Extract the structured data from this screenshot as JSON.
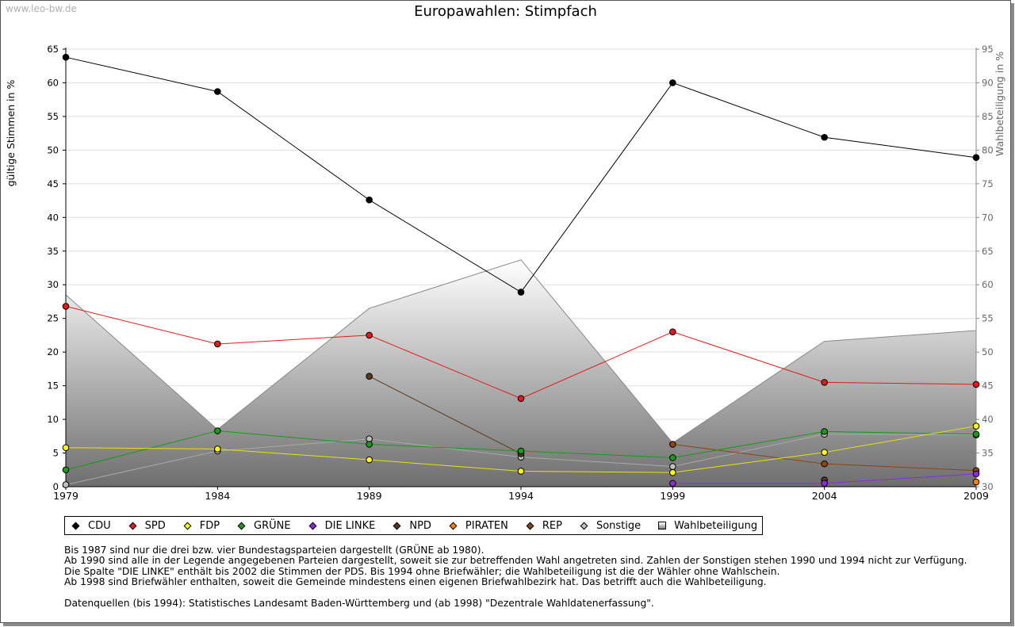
{
  "watermark": "www.leo-bw.de",
  "chart_data": {
    "type": "line",
    "title": "Europawahlen: Stimpfach",
    "ylabel": "gültige Stimmen in %",
    "y2label": "Wahlbeteiligung in %",
    "ylim": [
      0,
      65
    ],
    "y2lim": [
      30,
      95
    ],
    "yticks": [
      0,
      5,
      10,
      15,
      20,
      25,
      30,
      35,
      40,
      45,
      50,
      55,
      60,
      65
    ],
    "y2ticks": [
      30,
      35,
      40,
      45,
      50,
      55,
      60,
      65,
      70,
      75,
      80,
      85,
      90,
      95
    ],
    "x": [
      "1979",
      "1984",
      "1989",
      "1994",
      "1999",
      "2004",
      "2009"
    ],
    "grid": true,
    "legend_position": "bottom",
    "series": [
      {
        "name": "CDU",
        "color": "#000000",
        "values": [
          63.8,
          58.7,
          42.6,
          28.9,
          60.0,
          51.9,
          48.9
        ]
      },
      {
        "name": "SPD",
        "color": "#e41a1c",
        "values": [
          26.8,
          21.2,
          22.5,
          13.1,
          23.0,
          15.5,
          15.2
        ]
      },
      {
        "name": "FDP",
        "color": "#ffff00",
        "values": [
          5.8,
          5.6,
          4.0,
          2.3,
          2.1,
          5.1,
          9.0
        ]
      },
      {
        "name": "GRÜNE",
        "color": "#1a9a1a",
        "values": [
          2.5,
          8.3,
          6.3,
          5.3,
          4.3,
          8.2,
          7.8
        ]
      },
      {
        "name": "DIE LINKE",
        "color": "#8a2be2",
        "values": [
          null,
          null,
          null,
          null,
          0.5,
          0.5,
          1.9
        ]
      },
      {
        "name": "NPD",
        "color": "#5a3a20",
        "values": [
          null,
          null,
          16.4,
          4.9,
          null,
          1.0,
          null
        ]
      },
      {
        "name": "PIRATEN",
        "color": "#ff7f00",
        "values": [
          null,
          null,
          null,
          null,
          null,
          null,
          0.7
        ]
      },
      {
        "name": "REP",
        "color": "#8b4513",
        "values": [
          null,
          null,
          null,
          null,
          6.3,
          3.4,
          2.4
        ]
      },
      {
        "name": "Sonstige",
        "color": "#c0c0c0",
        "values": [
          0.3,
          5.3,
          7.1,
          4.4,
          3.0,
          7.8,
          7.7
        ]
      }
    ],
    "turnout": {
      "name": "Wahlbeteiligung",
      "color": "#a0a0a0",
      "values": [
        58.5,
        38.5,
        56.5,
        63.7,
        36.5,
        51.6,
        53.2
      ]
    }
  },
  "legend": [
    {
      "label": "CDU",
      "color": "#000000",
      "shape": "diamond"
    },
    {
      "label": "SPD",
      "color": "#e41a1c",
      "shape": "diamond"
    },
    {
      "label": "FDP",
      "color": "#ffff00",
      "shape": "diamond"
    },
    {
      "label": "GRÜNE",
      "color": "#1a9a1a",
      "shape": "diamond"
    },
    {
      "label": "DIE LINKE",
      "color": "#8a2be2",
      "shape": "diamond"
    },
    {
      "label": "NPD",
      "color": "#5a3a20",
      "shape": "diamond"
    },
    {
      "label": "PIRATEN",
      "color": "#ff7f00",
      "shape": "diamond"
    },
    {
      "label": "REP",
      "color": "#8b4513",
      "shape": "diamond"
    },
    {
      "label": "Sonstige",
      "color": "#c0c0c0",
      "shape": "diamond"
    },
    {
      "label": "Wahlbeteiligung",
      "color": "#a0a0a0",
      "shape": "square"
    }
  ],
  "notes": [
    "Bis 1987 sind nur die drei bzw. vier Bundestagsparteien dargestellt (GRÜNE ab 1980).",
    "Ab 1990 sind alle in der Legende angegebenen Parteien dargestellt, soweit sie zur betreffenden Wahl angetreten sind. Zahlen der Sonstigen stehen 1990 und 1994 nicht zur Verfügung.",
    "Die Spalte \"DIE LINKE\" enthält bis 2002 die Stimmen der PDS. Bis 1994 ohne Briefwähler; die Wahlbeteiligung ist die der Wähler ohne Wahlschein.",
    "Ab 1998 sind Briefwähler enthalten, soweit die Gemeinde mindestens einen eigenen Briefwahlbezirk hat. Das betrifft auch die Wahlbeteiligung.",
    "",
    "Datenquellen (bis 1994): Statistisches Landesamt Baden-Württemberg und (ab 1998) \"Dezentrale Wahldatenerfassung\"."
  ]
}
